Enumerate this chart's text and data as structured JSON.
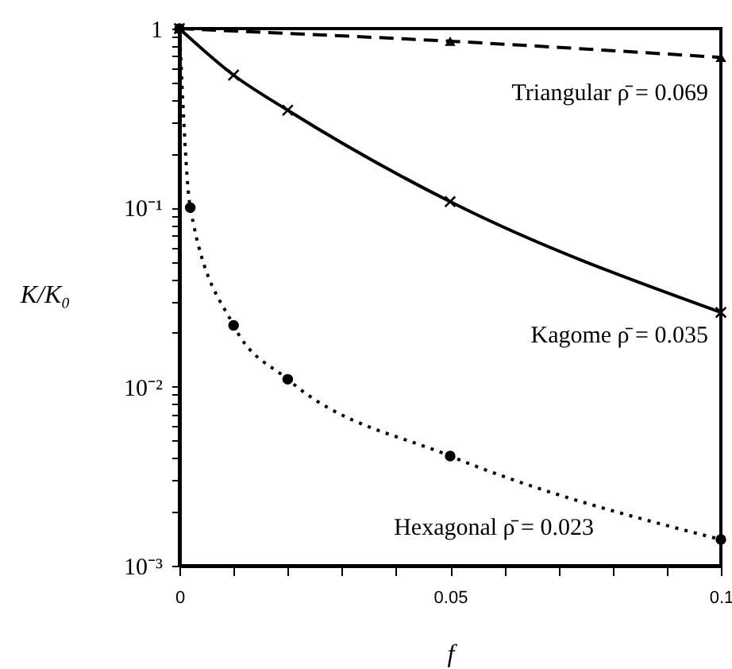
{
  "chart_data": {
    "type": "line",
    "xlabel": "f",
    "ylabel": "K/K₀",
    "log": "y",
    "grid": false,
    "xlim": [
      0,
      0.1
    ],
    "ylim": [
      0.001,
      1
    ],
    "xticks": [
      0,
      {
        "value": 0.01,
        "label": null
      },
      {
        "value": 0.02,
        "label": null
      },
      {
        "value": 0.03,
        "label": null
      },
      {
        "value": 0.04,
        "label": null
      },
      0.05,
      {
        "value": 0.06,
        "label": null
      },
      {
        "value": 0.07,
        "label": null
      },
      {
        "value": 0.08,
        "label": null
      },
      {
        "value": 0.09,
        "label": null
      },
      0.1
    ],
    "yticks": [
      {
        "value": 0.001,
        "label": "10⁻³"
      },
      {
        "value": 0.002,
        "label": null
      },
      {
        "value": 0.003,
        "label": null
      },
      {
        "value": 0.004,
        "label": null
      },
      {
        "value": 0.005,
        "label": null
      },
      {
        "value": 0.006,
        "label": null
      },
      {
        "value": 0.007,
        "label": null
      },
      {
        "value": 0.008,
        "label": null
      },
      {
        "value": 0.009,
        "label": null
      },
      {
        "value": 0.01,
        "label": "10⁻²"
      },
      {
        "value": 0.02,
        "label": null
      },
      {
        "value": 0.03,
        "label": null
      },
      {
        "value": 0.04,
        "label": null
      },
      {
        "value": 0.05,
        "label": null
      },
      {
        "value": 0.06,
        "label": null
      },
      {
        "value": 0.07,
        "label": null
      },
      {
        "value": 0.08,
        "label": null
      },
      {
        "value": 0.09,
        "label": null
      },
      {
        "value": 0.1,
        "label": "10⁻¹"
      },
      {
        "value": 0.2,
        "label": null
      },
      {
        "value": 0.3,
        "label": null
      },
      {
        "value": 0.4,
        "label": null
      },
      {
        "value": 0.5,
        "label": null
      },
      {
        "value": 0.6,
        "label": null
      },
      {
        "value": 0.7,
        "label": null
      },
      {
        "value": 0.8,
        "label": null
      },
      {
        "value": 0.9,
        "label": null
      },
      1
    ],
    "series": [
      {
        "name": "Triangular  ρ̄ = 0.069",
        "color": "#000000",
        "line_style": "dashed",
        "marker": "triangle",
        "x": [
          0,
          0.05,
          0.1
        ],
        "values": [
          1,
          0.85,
          0.69
        ]
      },
      {
        "name": "Kagome  ρ̄ = 0.035",
        "color": "#000000",
        "line_style": "solid",
        "marker": "cross",
        "x": [
          0,
          0.01,
          0.02,
          0.05,
          0.1
        ],
        "values": [
          1,
          0.55,
          0.35,
          0.108,
          0.026
        ]
      },
      {
        "name": "Hexagonal  ρ̄ = 0.023",
        "color": "#000000",
        "line_style": "dotted",
        "marker": "circle",
        "x": [
          0,
          0.002,
          0.01,
          0.02,
          0.05,
          0.1
        ],
        "values": [
          1,
          0.1,
          0.022,
          0.011,
          0.0041,
          0.0014
        ]
      }
    ]
  }
}
